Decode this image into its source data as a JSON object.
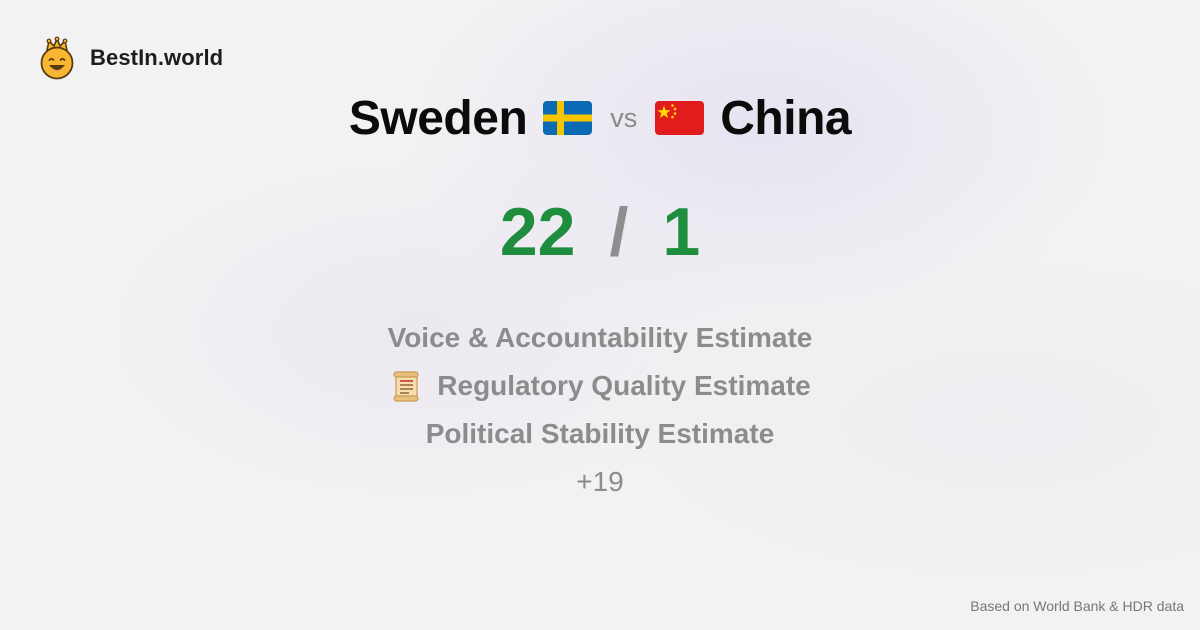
{
  "brand": {
    "name": "BestIn.world",
    "icon": "crowned-smiley-icon"
  },
  "comparison": {
    "left_country": "Sweden",
    "left_flag": "sweden-flag-icon",
    "vs_label": "vs",
    "right_country": "China",
    "right_flag": "china-flag-icon"
  },
  "score": {
    "left": "22",
    "separator": "/",
    "right": "1"
  },
  "metrics": [
    {
      "label": "Voice & Accountability Estimate"
    },
    {
      "label": "Regulatory Quality Estimate",
      "icon": "scroll-icon"
    },
    {
      "label": "Political Stability Estimate"
    }
  ],
  "more_label": "+19",
  "footer_note": "Based on World Bank & HDR data",
  "colors": {
    "score_green": "#1e8e3e",
    "muted_gray": "#8c8c8c",
    "text_dark": "#0b0b0c"
  }
}
